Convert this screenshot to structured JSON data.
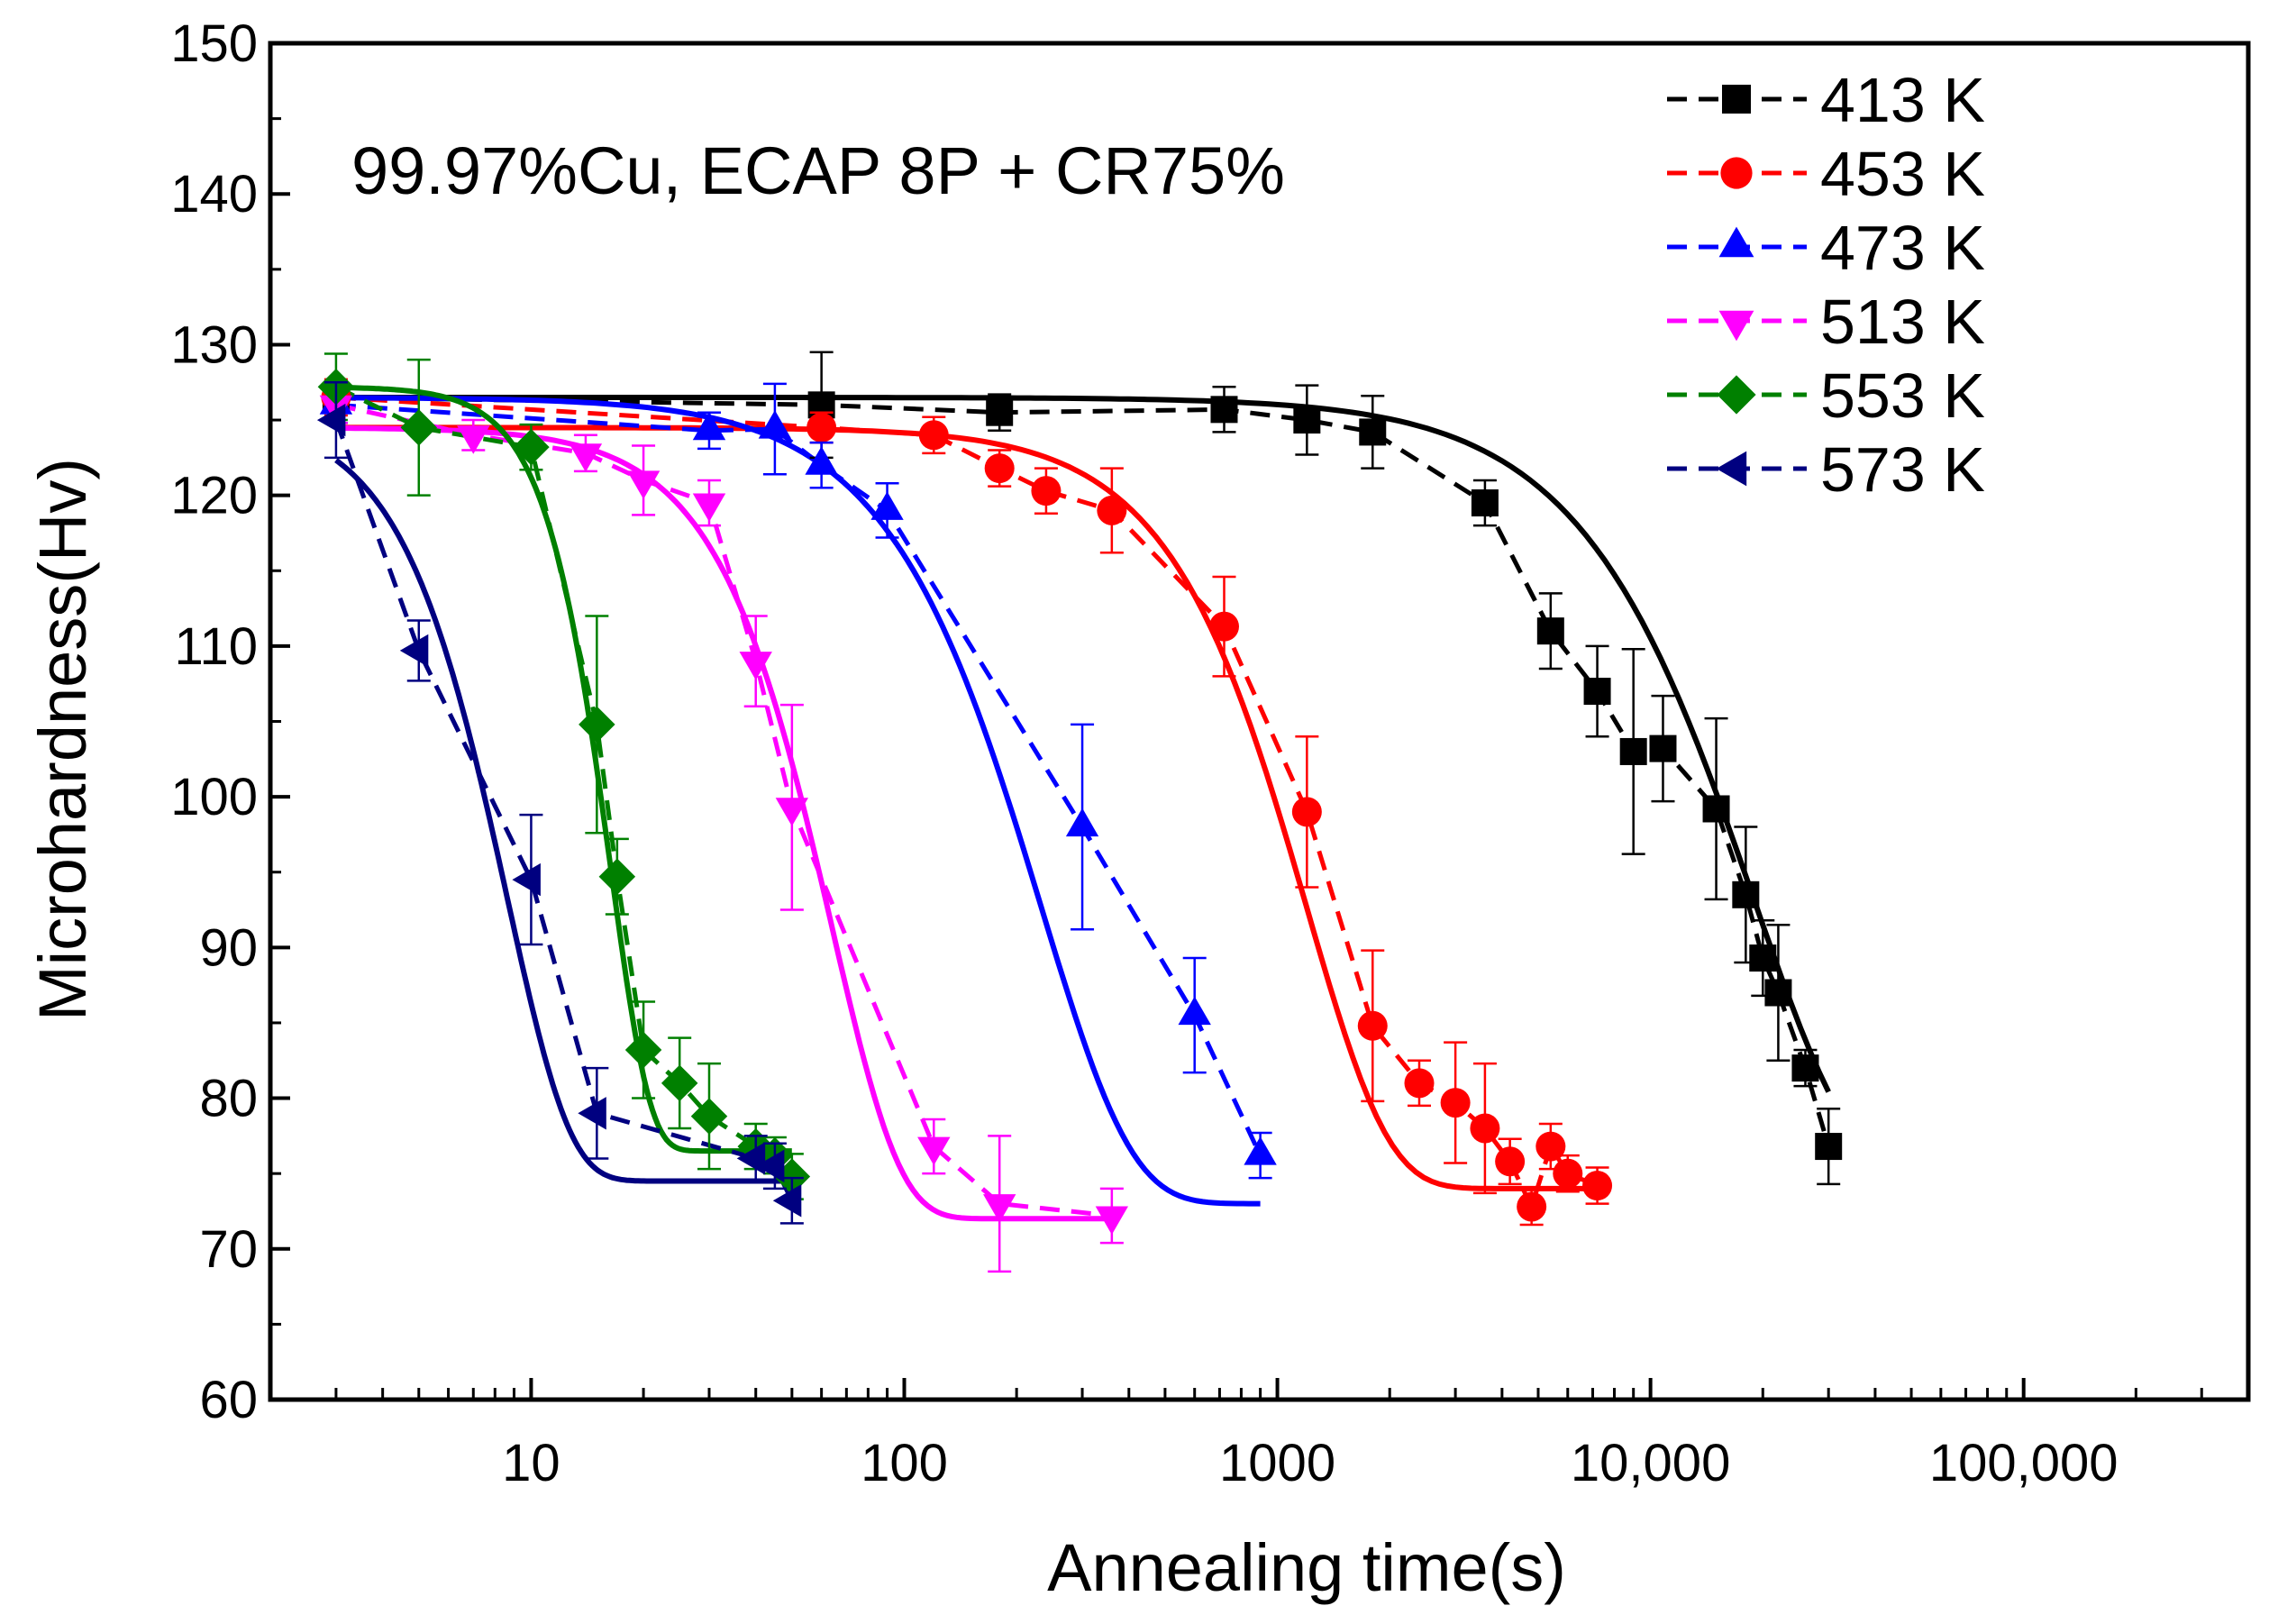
{
  "chart_data": {
    "type": "scatter",
    "title": "",
    "annotation": "99.97%Cu, ECAP 8P + CR75%",
    "xlabel": "Annealing time(s)",
    "ylabel": "Microhardness(Hv)",
    "x_scale": "log",
    "xlim": [
      2,
      400000
    ],
    "ylim": [
      60,
      150
    ],
    "x_ticks": [
      {
        "value": 10,
        "label": "10"
      },
      {
        "value": 100,
        "label": "100"
      },
      {
        "value": 1000,
        "label": "1000"
      },
      {
        "value": 10000,
        "label": "10,000"
      },
      {
        "value": 100000,
        "label": "100,000"
      }
    ],
    "y_ticks": [
      {
        "value": 60,
        "label": "60"
      },
      {
        "value": 70,
        "label": "70"
      },
      {
        "value": 80,
        "label": "80"
      },
      {
        "value": 90,
        "label": "90"
      },
      {
        "value": 100,
        "label": "100"
      },
      {
        "value": 110,
        "label": "110"
      },
      {
        "value": 120,
        "label": "120"
      },
      {
        "value": 130,
        "label": "130"
      },
      {
        "value": 140,
        "label": "140"
      },
      {
        "value": 150,
        "label": "150"
      }
    ],
    "grid": false,
    "legend_position": "top-right",
    "series": [
      {
        "name": "413 K",
        "color": "#000000",
        "marker": "square",
        "fit": {
          "h0": 126.5,
          "hf": 74,
          "t50": 15000,
          "n": 1.6
        },
        "points": [
          {
            "x": 3,
            "y": 126.5,
            "err": 1
          },
          {
            "x": 60,
            "y": 126,
            "err": 3.5
          },
          {
            "x": 180,
            "y": 125.5,
            "err": 1.2
          },
          {
            "x": 720,
            "y": 125.7,
            "err": 1.5
          },
          {
            "x": 1200,
            "y": 125,
            "err": 2.3
          },
          {
            "x": 1800,
            "y": 124.2,
            "err": 2.4
          },
          {
            "x": 3600,
            "y": 119.5,
            "err": 1.5
          },
          {
            "x": 5400,
            "y": 111,
            "err": 2.5
          },
          {
            "x": 7200,
            "y": 107,
            "err": 3
          },
          {
            "x": 9000,
            "y": 103,
            "err": 6.8
          },
          {
            "x": 10800,
            "y": 103.2,
            "err": 3.5
          },
          {
            "x": 15000,
            "y": 99.2,
            "err": 6
          },
          {
            "x": 18000,
            "y": 93.5,
            "err": 4.5
          },
          {
            "x": 20000,
            "y": 89.3,
            "err": 2.5
          },
          {
            "x": 22000,
            "y": 87,
            "err": 4.5
          },
          {
            "x": 26000,
            "y": 82,
            "err": 1.2
          },
          {
            "x": 30000,
            "y": 76.8,
            "err": 2.5
          }
        ]
      },
      {
        "name": "453 K",
        "color": "#ff0000",
        "marker": "circle",
        "fit": {
          "h0": 124.5,
          "hf": 74,
          "t50": 1000,
          "n": 2.0
        },
        "points": [
          {
            "x": 3,
            "y": 126.5,
            "err": 1.2
          },
          {
            "x": 60,
            "y": 124.5,
            "err": 1
          },
          {
            "x": 120,
            "y": 124,
            "err": 1.2
          },
          {
            "x": 180,
            "y": 121.8,
            "err": 1.2
          },
          {
            "x": 240,
            "y": 120.3,
            "err": 1.5
          },
          {
            "x": 360,
            "y": 119,
            "err": 2.8
          },
          {
            "x": 720,
            "y": 111.3,
            "err": 3.3
          },
          {
            "x": 1200,
            "y": 99,
            "err": 5
          },
          {
            "x": 1800,
            "y": 84.8,
            "err": 5
          },
          {
            "x": 2400,
            "y": 81,
            "err": 1.5
          },
          {
            "x": 3000,
            "y": 79.7,
            "err": 4
          },
          {
            "x": 3600,
            "y": 78,
            "err": 4.3
          },
          {
            "x": 4200,
            "y": 75.8,
            "err": 1.5
          },
          {
            "x": 4800,
            "y": 72.8,
            "err": 1.2
          },
          {
            "x": 5400,
            "y": 76.8,
            "err": 1.5
          },
          {
            "x": 6000,
            "y": 75,
            "err": 1.2
          },
          {
            "x": 7200,
            "y": 74.2,
            "err": 1.2
          }
        ]
      },
      {
        "name": "473 K",
        "color": "#0000ff",
        "marker": "triangle-up",
        "fit": {
          "h0": 126.5,
          "hf": 73,
          "t50": 190,
          "n": 1.8
        },
        "points": [
          {
            "x": 3,
            "y": 126,
            "err": 1.2
          },
          {
            "x": 30,
            "y": 124.3,
            "err": 1.2
          },
          {
            "x": 45,
            "y": 124.4,
            "err": 3
          },
          {
            "x": 60,
            "y": 122,
            "err": 1.5
          },
          {
            "x": 90,
            "y": 119,
            "err": 1.8
          },
          {
            "x": 300,
            "y": 98,
            "err": 6.8
          },
          {
            "x": 600,
            "y": 85.5,
            "err": 3.8
          },
          {
            "x": 900,
            "y": 76.2,
            "err": 1.5
          }
        ]
      },
      {
        "name": "513 K",
        "color": "#ff00ff",
        "marker": "triangle-down",
        "fit": {
          "h0": 124.5,
          "hf": 72,
          "t50": 55,
          "n": 2.4
        },
        "points": [
          {
            "x": 3,
            "y": 126,
            "err": 1.2
          },
          {
            "x": 7,
            "y": 124,
            "err": 1
          },
          {
            "x": 14,
            "y": 122.8,
            "err": 1.2
          },
          {
            "x": 20,
            "y": 121,
            "err": 2.3
          },
          {
            "x": 30,
            "y": 119.5,
            "err": 1.5
          },
          {
            "x": 40,
            "y": 109,
            "err": 3
          },
          {
            "x": 50,
            "y": 99.3,
            "err": 6.8
          },
          {
            "x": 120,
            "y": 76.8,
            "err": 1.8
          },
          {
            "x": 180,
            "y": 73,
            "err": 4.5
          },
          {
            "x": 360,
            "y": 72.2,
            "err": 1.8
          }
        ]
      },
      {
        "name": "553 K",
        "color": "#008000",
        "marker": "diamond",
        "fit": {
          "h0": 127.2,
          "hf": 76.5,
          "t50": 15,
          "n": 4.2
        },
        "points": [
          {
            "x": 3,
            "y": 127.2,
            "err": 2.2
          },
          {
            "x": 5,
            "y": 124.5,
            "err": 4.5
          },
          {
            "x": 10,
            "y": 123.2,
            "err": 1.5
          },
          {
            "x": 15,
            "y": 104.8,
            "err": 7.2
          },
          {
            "x": 17,
            "y": 94.7,
            "err": 2.5
          },
          {
            "x": 20,
            "y": 83.2,
            "err": 3.2
          },
          {
            "x": 25,
            "y": 81,
            "err": 3
          },
          {
            "x": 30,
            "y": 78.8,
            "err": 3.5
          },
          {
            "x": 40,
            "y": 76.8,
            "err": 1.5
          },
          {
            "x": 45,
            "y": 76.2,
            "err": 1.2
          },
          {
            "x": 50,
            "y": 74.8,
            "err": 1.5
          }
        ]
      },
      {
        "name": "573 K",
        "color": "#000080",
        "marker": "triangle-left",
        "fit": {
          "h0": 125.5,
          "hf": 74.5,
          "t50": 7.5,
          "n": 2.6
        },
        "points": [
          {
            "x": 3,
            "y": 125,
            "err": 2.5
          },
          {
            "x": 5,
            "y": 109.7,
            "err": 2
          },
          {
            "x": 10,
            "y": 94.5,
            "err": 4.3
          },
          {
            "x": 15,
            "y": 79,
            "err": 3
          },
          {
            "x": 40,
            "y": 76,
            "err": 1.5
          },
          {
            "x": 45,
            "y": 75.5,
            "err": 1.5
          },
          {
            "x": 50,
            "y": 73.2,
            "err": 1.5
          }
        ]
      }
    ]
  }
}
